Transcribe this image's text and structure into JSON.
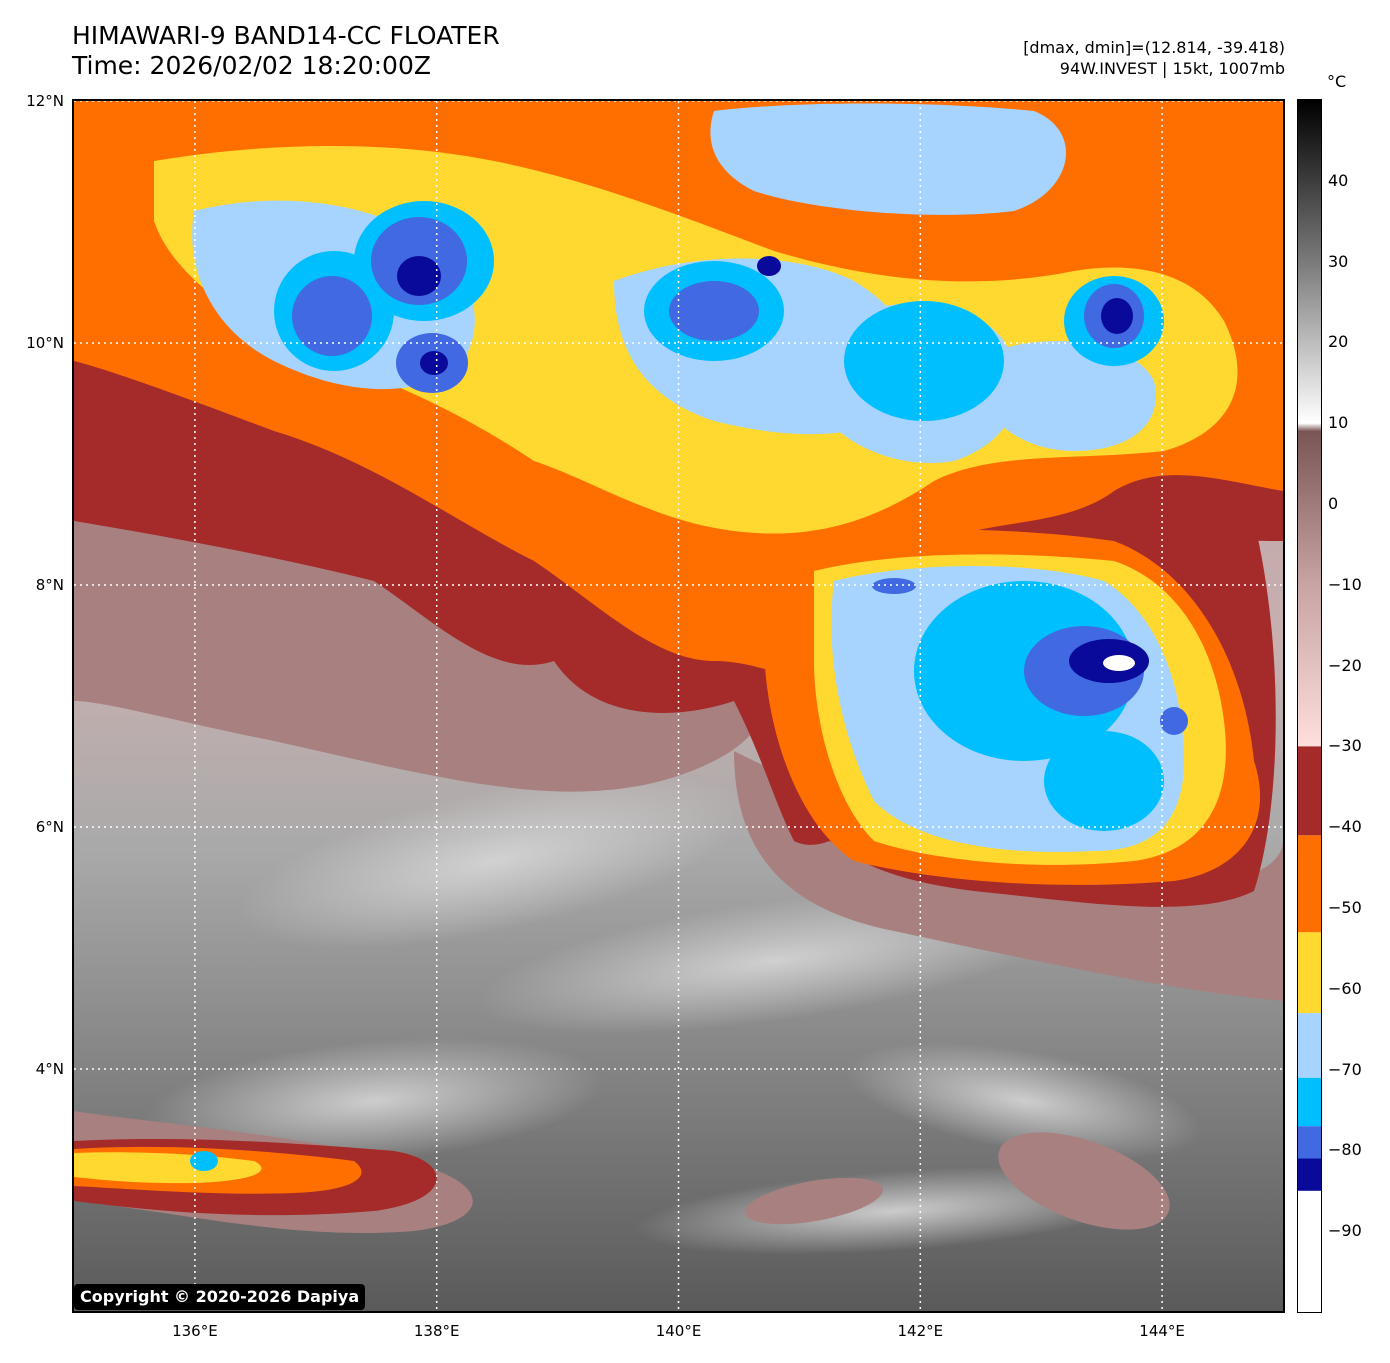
{
  "header": {
    "title": "HIMAWARI-9 BAND14-CC FLOATER",
    "time": "Time: 2026/02/02 18:20:00Z",
    "range": "[dmax, dmin]=(12.814, -39.418)",
    "storm": "94W.INVEST | 15kt, 1007mb"
  },
  "axes": {
    "lat_labels": [
      {
        "text": "12°N",
        "lat": 12
      },
      {
        "text": "10°N",
        "lat": 10
      },
      {
        "text": "8°N",
        "lat": 8
      },
      {
        "text": "6°N",
        "lat": 6
      },
      {
        "text": "4°N",
        "lat": 4
      }
    ],
    "lon_labels": [
      {
        "text": "136°E",
        "lon": 136
      },
      {
        "text": "138°E",
        "lon": 138
      },
      {
        "text": "140°E",
        "lon": 140
      },
      {
        "text": "142°E",
        "lon": 142
      },
      {
        "text": "144°E",
        "lon": 144
      }
    ],
    "lon_range": [
      135.0,
      145.0
    ],
    "lat_range": [
      2.0,
      12.0
    ],
    "gridlines": "dotted white"
  },
  "colorbar": {
    "unit": "°C",
    "range": [
      -100,
      50
    ],
    "ticks": [
      "40",
      "30",
      "20",
      "10",
      "0",
      "−10",
      "−20",
      "−30",
      "−40",
      "−50",
      "−60",
      "−70",
      "−80",
      "−90"
    ],
    "tick_values": [
      40,
      30,
      20,
      10,
      0,
      -10,
      -20,
      -30,
      -40,
      -50,
      -60,
      -70,
      -80,
      -90
    ],
    "bands": [
      {
        "from": -100,
        "to": -85,
        "color": "#ffffff"
      },
      {
        "from": -85,
        "to": -81,
        "color": "#0a0a9a"
      },
      {
        "from": -81,
        "to": -77,
        "color": "#4169e1"
      },
      {
        "from": -77,
        "to": -71,
        "color": "#00bfff"
      },
      {
        "from": -71,
        "to": -63,
        "color": "#a6d4ff"
      },
      {
        "from": -63,
        "to": -53,
        "color": "#ffd92f"
      },
      {
        "from": -53,
        "to": -41,
        "color": "#ff6f00"
      },
      {
        "from": -41,
        "to": -30,
        "color": "#a52a2a"
      }
    ],
    "gradient": [
      {
        "t": -30,
        "color": "#ffdede"
      },
      {
        "t": -10,
        "color": "#c8a4a4"
      },
      {
        "t": 9,
        "color": "#7a5555"
      },
      {
        "t": 10,
        "color": "#ffffff"
      },
      {
        "t": 30,
        "color": "#7a7a7a"
      },
      {
        "t": 50,
        "color": "#000000"
      }
    ]
  },
  "cloud_layers": {
    "brown": "#a52a2a",
    "orange": "#ff6f00",
    "yellow": "#ffd92f",
    "lightblue": "#a6d4ff",
    "cyan": "#00bfff",
    "royal": "#4169e1",
    "navy": "#0a0a9a",
    "pink": "#e8c6c6",
    "mauve": "#a88080",
    "gray_light": "#bdbdbd",
    "gray_dark": "#5e5e5e"
  },
  "copyright": "Copyright © 2020-2026 Dapiya"
}
